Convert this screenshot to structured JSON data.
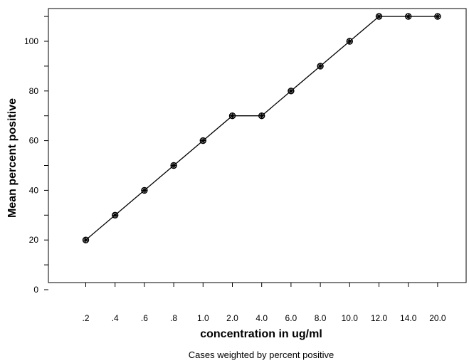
{
  "chart_data": {
    "type": "line",
    "title": "",
    "xlabel": "concentration in ug/ml",
    "ylabel": "Mean percent positive",
    "note": "Cases weighted by percent positive",
    "categories": [
      ".2",
      ".4",
      ".6",
      ".8",
      "1.0",
      "2.0",
      "4.0",
      "6.0",
      "8.0",
      "10.0",
      "12.0",
      "14.0",
      "20.0"
    ],
    "series": [
      {
        "values": [
          20,
          30,
          40,
          50,
          60,
          70,
          70,
          80,
          90,
          100,
          110,
          110,
          110
        ]
      }
    ],
    "ylim": [
      0,
      110
    ],
    "yticks_labeled": [
      0,
      20,
      40,
      60,
      80,
      100
    ],
    "yticks_minor": [
      10,
      30,
      50,
      70,
      90,
      110
    ],
    "marker": "asterisk",
    "grid": false,
    "legend": "none",
    "colors": {
      "line": "#000000",
      "axis": "#000000"
    }
  }
}
